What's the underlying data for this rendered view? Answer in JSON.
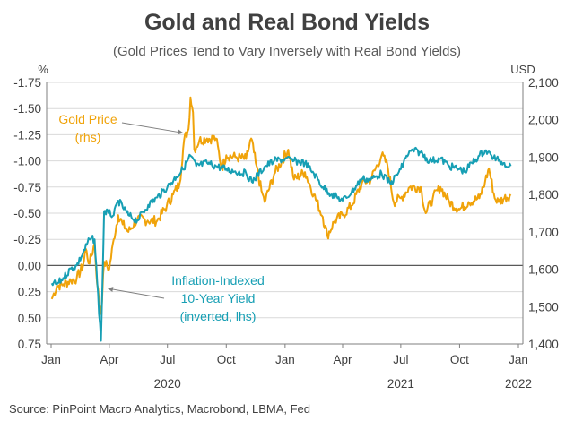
{
  "chart_data": {
    "type": "line",
    "title": "Gold and Real Bond Yields",
    "subtitle": "(Gold Prices Tend to Vary Inversely with Real Bond Yields)",
    "source": "Source: PinPoint Macro Analytics, Macrobond, LBMA, Fed",
    "left_axis": {
      "unit": "%",
      "inverted": true,
      "range": [
        -1.75,
        0.75
      ],
      "ticks": [
        -1.75,
        -1.5,
        -1.25,
        -1.0,
        -0.75,
        -0.5,
        -0.25,
        0.0,
        0.25,
        0.5,
        0.75
      ],
      "tick_labels": [
        "-1.75",
        "-1.50",
        "-1.25",
        "-1.00",
        "-0.75",
        "-0.50",
        "-0.25",
        "0.00",
        "0.25",
        "0.50",
        "0.75"
      ]
    },
    "right_axis": {
      "unit": "USD",
      "range": [
        1400,
        2100
      ],
      "ticks": [
        1400,
        1500,
        1600,
        1700,
        1800,
        1900,
        2000,
        2100
      ],
      "tick_labels": [
        "1,400",
        "1,500",
        "1,600",
        "1,700",
        "1,800",
        "1,900",
        "2,000",
        "2,100"
      ]
    },
    "x_axis": {
      "range": [
        "2019-12-25",
        "2022-01-08"
      ],
      "month_ticks": [
        {
          "date": "2020-01-01",
          "label": "Jan"
        },
        {
          "date": "2020-04-01",
          "label": "Apr"
        },
        {
          "date": "2020-07-01",
          "label": "Jul"
        },
        {
          "date": "2020-10-01",
          "label": "Oct"
        },
        {
          "date": "2021-01-01",
          "label": "Jan"
        },
        {
          "date": "2021-04-01",
          "label": "Apr"
        },
        {
          "date": "2021-07-01",
          "label": "Jul"
        },
        {
          "date": "2021-10-01",
          "label": "Oct"
        },
        {
          "date": "2022-01-01",
          "label": "Jan"
        }
      ],
      "year_labels": [
        {
          "date": "2020-07-01",
          "label": "2020"
        },
        {
          "date": "2021-07-01",
          "label": "2021"
        },
        {
          "date": "2022-01-01",
          "label": "2022"
        }
      ]
    },
    "grid": true,
    "colors": {
      "gold": "#f0a30a",
      "yield": "#179fb4",
      "grid": "#d9d9d9",
      "zero": "#595959",
      "axis": "#7f7f7f"
    },
    "series": [
      {
        "key": "gold",
        "axis": "right",
        "x": [
          "2020-01-02",
          "2020-01-10",
          "2020-01-20",
          "2020-02-01",
          "2020-02-10",
          "2020-02-20",
          "2020-02-24",
          "2020-03-01",
          "2020-03-09",
          "2020-03-13",
          "2020-03-19",
          "2020-03-24",
          "2020-04-01",
          "2020-04-08",
          "2020-04-15",
          "2020-04-22",
          "2020-05-01",
          "2020-05-15",
          "2020-05-31",
          "2020-06-15",
          "2020-06-30",
          "2020-07-10",
          "2020-07-20",
          "2020-07-27",
          "2020-08-03",
          "2020-08-06",
          "2020-08-10",
          "2020-08-12",
          "2020-08-20",
          "2020-09-01",
          "2020-09-15",
          "2020-09-24",
          "2020-10-01",
          "2020-10-15",
          "2020-11-01",
          "2020-11-09",
          "2020-11-16",
          "2020-11-25",
          "2020-11-30",
          "2020-12-15",
          "2021-01-06",
          "2021-01-15",
          "2021-02-01",
          "2021-02-15",
          "2021-03-01",
          "2021-03-08",
          "2021-03-20",
          "2021-04-01",
          "2021-04-15",
          "2021-05-01",
          "2021-05-15",
          "2021-06-01",
          "2021-06-10",
          "2021-06-20",
          "2021-07-01",
          "2021-07-15",
          "2021-08-01",
          "2021-08-09",
          "2021-08-20",
          "2021-09-01",
          "2021-09-15",
          "2021-10-01",
          "2021-10-15",
          "2021-11-01",
          "2021-11-10",
          "2021-11-16",
          "2021-11-25",
          "2021-12-01",
          "2021-12-10",
          "2021-12-20"
        ],
        "y": [
          1520,
          1555,
          1560,
          1570,
          1575,
          1610,
          1655,
          1615,
          1670,
          1560,
          1480,
          1620,
          1600,
          1680,
          1745,
          1720,
          1700,
          1735,
          1730,
          1730,
          1770,
          1800,
          1830,
          1945,
          1975,
          2060,
          2020,
          1920,
          1945,
          1950,
          1950,
          1870,
          1905,
          1900,
          1895,
          1950,
          1885,
          1810,
          1780,
          1855,
          1920,
          1840,
          1860,
          1800,
          1740,
          1690,
          1730,
          1745,
          1770,
          1830,
          1840,
          1905,
          1880,
          1780,
          1790,
          1820,
          1820,
          1750,
          1790,
          1820,
          1780,
          1760,
          1780,
          1790,
          1835,
          1870,
          1790,
          1780,
          1790,
          1800
        ]
      },
      {
        "key": "yield",
        "axis": "left",
        "x": [
          "2020-01-02",
          "2020-01-10",
          "2020-01-20",
          "2020-02-01",
          "2020-02-10",
          "2020-02-20",
          "2020-03-01",
          "2020-03-09",
          "2020-03-13",
          "2020-03-19",
          "2020-03-24",
          "2020-03-31",
          "2020-04-08",
          "2020-04-15",
          "2020-05-01",
          "2020-05-15",
          "2020-06-01",
          "2020-06-15",
          "2020-07-01",
          "2020-07-15",
          "2020-07-25",
          "2020-08-06",
          "2020-08-15",
          "2020-09-01",
          "2020-09-15",
          "2020-10-01",
          "2020-10-15",
          "2020-11-01",
          "2020-11-10",
          "2020-12-01",
          "2020-12-15",
          "2021-01-01",
          "2021-01-15",
          "2021-02-01",
          "2021-02-15",
          "2021-03-01",
          "2021-03-15",
          "2021-04-01",
          "2021-04-15",
          "2021-05-01",
          "2021-05-15",
          "2021-06-01",
          "2021-06-15",
          "2021-07-01",
          "2021-07-10",
          "2021-07-20",
          "2021-08-01",
          "2021-08-15",
          "2021-09-01",
          "2021-09-15",
          "2021-10-01",
          "2021-10-10",
          "2021-10-20",
          "2021-11-01",
          "2021-11-10",
          "2021-11-20",
          "2021-12-01",
          "2021-12-10",
          "2021-12-20"
        ],
        "y": [
          0.17,
          0.18,
          0.12,
          0.03,
          0.0,
          -0.12,
          -0.25,
          -0.25,
          0.15,
          0.72,
          -0.52,
          -0.5,
          -0.48,
          -0.62,
          -0.48,
          -0.43,
          -0.58,
          -0.65,
          -0.75,
          -0.85,
          -0.92,
          -1.05,
          -0.95,
          -0.98,
          -0.95,
          -0.92,
          -0.9,
          -0.88,
          -0.8,
          -0.95,
          -1.0,
          -1.02,
          -1.0,
          -0.98,
          -0.88,
          -0.75,
          -0.68,
          -0.62,
          -0.7,
          -0.83,
          -0.82,
          -0.88,
          -0.78,
          -0.92,
          -1.05,
          -1.1,
          -1.08,
          -1.0,
          -1.02,
          -0.95,
          -0.92,
          -0.9,
          -0.98,
          -1.05,
          -1.1,
          -1.05,
          -1.0,
          -0.98,
          -0.95
        ]
      }
    ],
    "annotations": [
      {
        "key": "gold",
        "lines": [
          "Gold Price",
          "(rhs)"
        ],
        "target": {
          "date": "2020-07-29",
          "axis": "right",
          "value": 1965
        }
      },
      {
        "key": "yield",
        "lines": [
          "Inflation-Indexed",
          "10-Year Yield",
          "(inverted, lhs)"
        ],
        "target": {
          "date": "2020-03-26",
          "axis": "left",
          "value": 0.22
        }
      }
    ]
  }
}
